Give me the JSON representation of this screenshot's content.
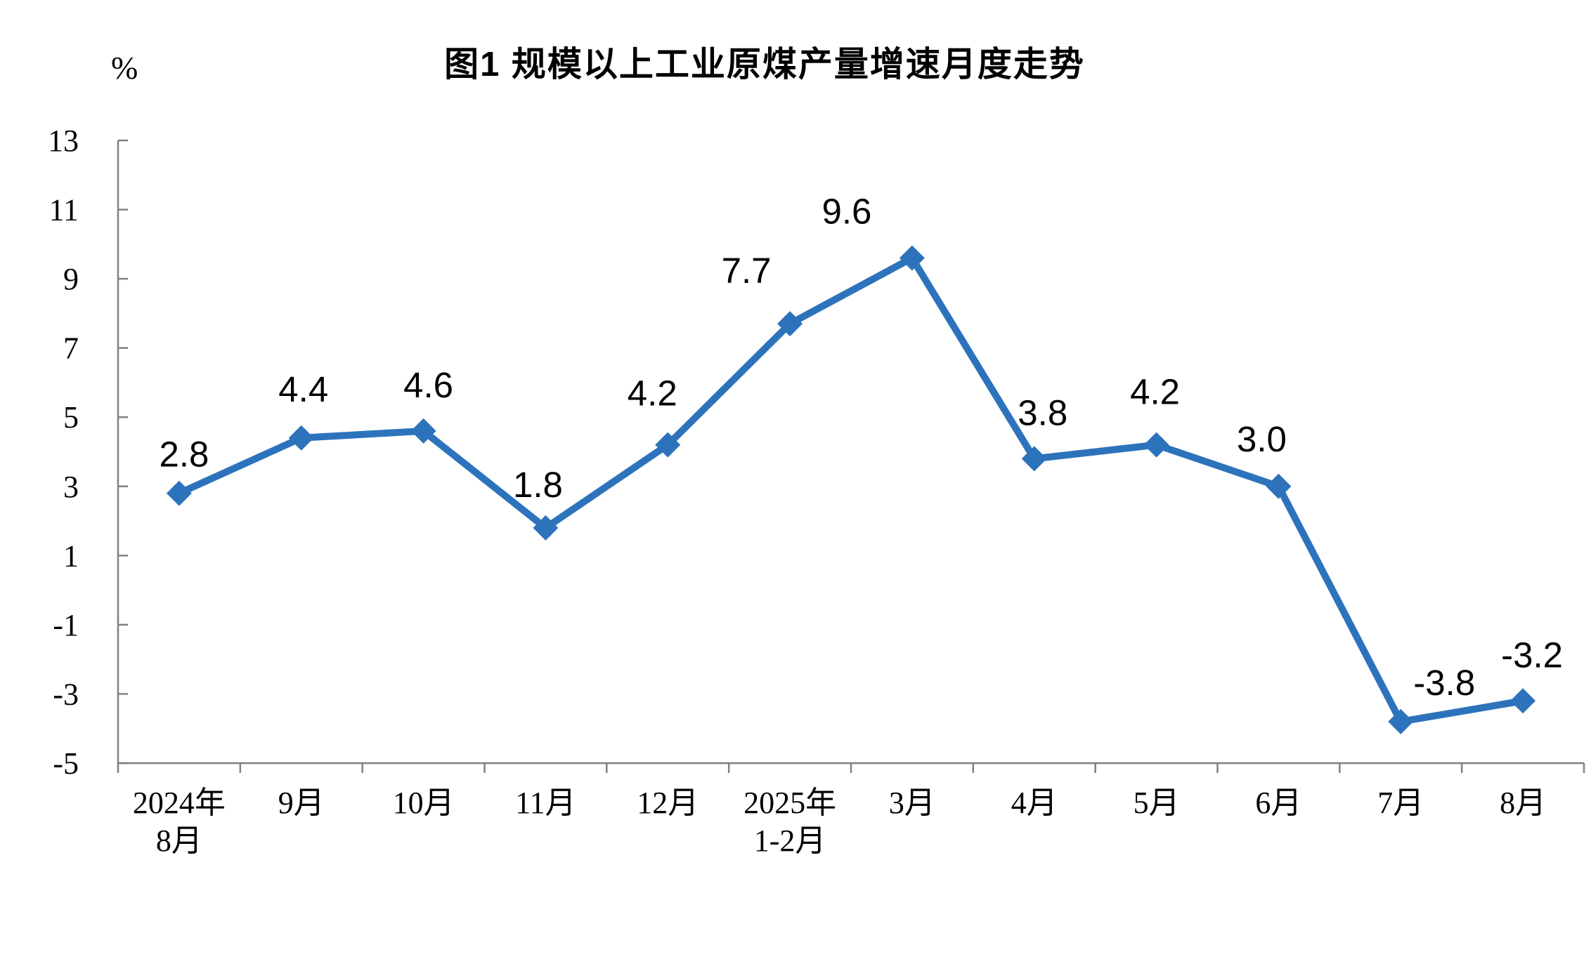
{
  "chart_data": {
    "type": "line",
    "title": "图1  规模以上工业原煤产量增速月度走势",
    "ylabel": "%",
    "xlabel": "",
    "categories": [
      "2024年\n8月",
      "9月",
      "10月",
      "11月",
      "12月",
      "2025年\n1-2月",
      "3月",
      "4月",
      "5月",
      "6月",
      "7月",
      "8月"
    ],
    "values": [
      2.8,
      4.4,
      4.6,
      1.8,
      4.2,
      7.7,
      9.6,
      3.8,
      4.2,
      3.0,
      -3.8,
      -3.2
    ],
    "data_labels": [
      "2.8",
      "4.4",
      "4.6",
      "1.8",
      "4.2",
      "7.7",
      "9.6",
      "3.8",
      "4.2",
      "3.0",
      "-3.8",
      "-3.2"
    ],
    "ylim": [
      -5,
      13
    ],
    "yticks": [
      13,
      11,
      9,
      7,
      5,
      3,
      1,
      -1,
      -3,
      -5
    ],
    "grid": false,
    "legend": "none",
    "marker": "diamond",
    "line_color": "#2d73bc",
    "axis_color": "#808080",
    "label_color": "#000000",
    "background": "#ffffff"
  }
}
